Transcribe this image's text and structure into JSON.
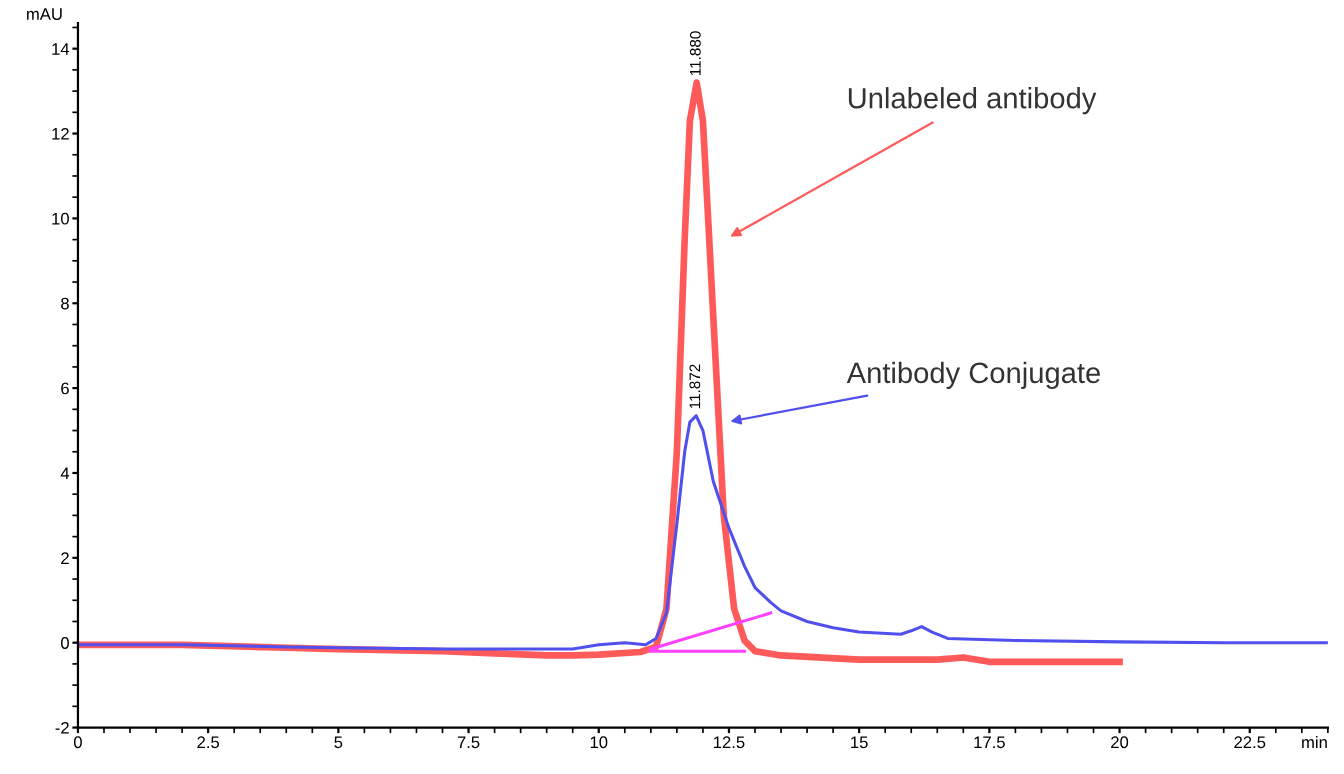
{
  "chart_data": {
    "type": "line",
    "ylabel": "mAU",
    "xlabel": "min",
    "xlim": [
      0,
      24
    ],
    "ylim": [
      -2,
      14.6
    ],
    "xticks": [
      0,
      2.5,
      5,
      7.5,
      10,
      12.5,
      15,
      17.5,
      20,
      22.5
    ],
    "yticks": [
      -2,
      0,
      2,
      4,
      6,
      8,
      10,
      12,
      14
    ],
    "grid": false,
    "legend": false,
    "marker": "none",
    "line_style": "solid",
    "series": [
      {
        "color": "#ff5a5a",
        "x": [
          0,
          2,
          4,
          5,
          7,
          8,
          9,
          9.5,
          10,
          10.8,
          11.1,
          11.3,
          11.5,
          11.65,
          11.75,
          11.88,
          12.0,
          12.1,
          12.25,
          12.4,
          12.6,
          12.8,
          13.0,
          13.5,
          15,
          16.5,
          17,
          17.5,
          19,
          20
        ],
        "values": [
          -0.05,
          -0.05,
          -0.12,
          -0.15,
          -0.2,
          -0.25,
          -0.3,
          -0.3,
          -0.28,
          -0.22,
          -0.1,
          0.8,
          4.5,
          9.5,
          12.3,
          13.2,
          12.3,
          10,
          6.5,
          3,
          0.8,
          0.05,
          -0.2,
          -0.3,
          -0.4,
          -0.4,
          -0.35,
          -0.45,
          -0.45,
          -0.45
        ]
      },
      {
        "color": "#5050ee",
        "x": [
          0,
          2,
          4,
          5,
          7,
          8,
          9.5,
          10,
          10.5,
          10.9,
          11.1,
          11.3,
          11.5,
          11.65,
          11.75,
          11.87,
          12.0,
          12.2,
          12.5,
          12.8,
          13.0,
          13.3,
          13.5,
          14,
          14.5,
          15,
          15.8,
          16.0,
          16.2,
          16.4,
          16.7,
          18,
          20,
          22,
          24
        ],
        "values": [
          -0.05,
          -0.05,
          -0.1,
          -0.12,
          -0.15,
          -0.15,
          -0.15,
          -0.05,
          0.0,
          -0.05,
          0.1,
          0.7,
          2.8,
          4.5,
          5.2,
          5.35,
          5.0,
          3.8,
          2.7,
          1.8,
          1.3,
          0.95,
          0.75,
          0.5,
          0.35,
          0.25,
          0.2,
          0.28,
          0.38,
          0.25,
          0.1,
          0.05,
          0.02,
          0.0,
          0.0
        ]
      },
      {
        "color": "#ff40ff",
        "x": [
          11.0,
          13.3
        ],
        "values": [
          -0.15,
          0.7
        ]
      },
      {
        "color": "#ff40ff",
        "x": [
          11.0,
          12.8
        ],
        "values": [
          -0.2,
          -0.2
        ]
      }
    ],
    "annotations": [
      {
        "text": "11.880",
        "x": 11.88,
        "y": 13.2
      },
      {
        "text": "11.872",
        "x": 11.87,
        "y": 5.35
      },
      "Unlabeled antibody",
      "Antibody Conjugate"
    ]
  }
}
